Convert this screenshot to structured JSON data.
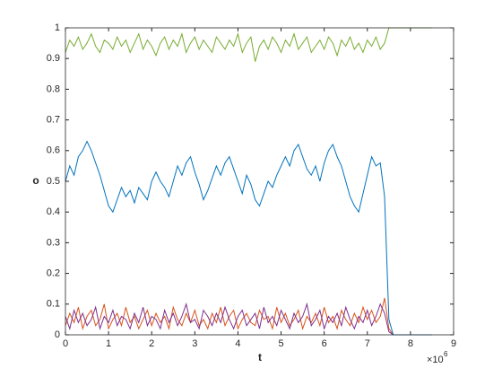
{
  "chart_data": {
    "type": "line",
    "xlabel": "t",
    "ylabel": "o",
    "x_multiplier": "×10",
    "x_multiplier_exponent": "6",
    "x": [
      0,
      0.1,
      0.2,
      0.3,
      0.4,
      0.5,
      0.6,
      0.7,
      0.8,
      0.9,
      1,
      1.1,
      1.2,
      1.3,
      1.4,
      1.5,
      1.6,
      1.7,
      1.8,
      1.9,
      2,
      2.1,
      2.2,
      2.3,
      2.4,
      2.5,
      2.6,
      2.7,
      2.8,
      2.9,
      3,
      3.1,
      3.2,
      3.3,
      3.4,
      3.5,
      3.6,
      3.7,
      3.8,
      3.9,
      4,
      4.1,
      4.2,
      4.3,
      4.4,
      4.5,
      4.6,
      4.7,
      4.8,
      4.9,
      5,
      5.1,
      5.2,
      5.3,
      5.4,
      5.5,
      5.6,
      5.7,
      5.8,
      5.9,
      6,
      6.1,
      6.2,
      6.3,
      6.4,
      6.5,
      6.6,
      6.7,
      6.8,
      6.9,
      7,
      7.1,
      7.2,
      7.3,
      7.4,
      7.5,
      7.6,
      8,
      8.5
    ],
    "series": [
      {
        "color": "#d95319",
        "values": [
          0.03,
          0.07,
          0.04,
          0.09,
          0.02,
          0.06,
          0.08,
          0.03,
          0.05,
          0.1,
          0.02,
          0.05,
          0.07,
          0.03,
          0.09,
          0.04,
          0.06,
          0.02,
          0.05,
          0.08,
          0.03,
          0.07,
          0.04,
          0.06,
          0.02,
          0.09,
          0.05,
          0.03,
          0.07,
          0.04,
          0.08,
          0.03,
          0.05,
          0.02,
          0.07,
          0.04,
          0.09,
          0.03,
          0.06,
          0.08,
          0.02,
          0.05,
          0.07,
          0.04,
          0.03,
          0.08,
          0.05,
          0.06,
          0.02,
          0.09,
          0.04,
          0.07,
          0.03,
          0.05,
          0.08,
          0.02,
          0.06,
          0.04,
          0.07,
          0.03,
          0.09,
          0.04,
          0.06,
          0.02,
          0.08,
          0.05,
          0.03,
          0.07,
          0.04,
          0.09,
          0.05,
          0.08,
          0.04,
          0.06,
          0.12,
          0.02,
          0,
          0,
          0
        ]
      },
      {
        "color": "#7e2f8e",
        "values": [
          0.06,
          0.02,
          0.08,
          0.04,
          0.07,
          0.03,
          0.05,
          0.09,
          0.02,
          0.06,
          0.04,
          0.08,
          0.03,
          0.06,
          0.05,
          0.02,
          0.07,
          0.04,
          0.09,
          0.03,
          0.06,
          0.05,
          0.02,
          0.08,
          0.04,
          0.07,
          0.03,
          0.06,
          0.1,
          0.04,
          0.05,
          0.02,
          0.08,
          0.06,
          0.03,
          0.07,
          0.04,
          0.09,
          0.05,
          0.02,
          0.06,
          0.08,
          0.03,
          0.05,
          0.07,
          0.02,
          0.09,
          0.04,
          0.06,
          0.03,
          0.08,
          0.05,
          0.02,
          0.07,
          0.04,
          0.06,
          0.1,
          0.03,
          0.05,
          0.08,
          0.02,
          0.06,
          0.04,
          0.07,
          0.03,
          0.09,
          0.05,
          0.02,
          0.06,
          0.04,
          0.08,
          0.03,
          0.06,
          0.1,
          0.07,
          0.01,
          0,
          0,
          0
        ]
      },
      {
        "color": "#0072bd",
        "values": [
          0.5,
          0.55,
          0.52,
          0.58,
          0.6,
          0.63,
          0.6,
          0.56,
          0.52,
          0.47,
          0.42,
          0.4,
          0.44,
          0.48,
          0.45,
          0.47,
          0.43,
          0.48,
          0.46,
          0.44,
          0.5,
          0.53,
          0.5,
          0.48,
          0.45,
          0.5,
          0.55,
          0.52,
          0.56,
          0.58,
          0.53,
          0.49,
          0.44,
          0.47,
          0.51,
          0.55,
          0.52,
          0.56,
          0.58,
          0.54,
          0.5,
          0.46,
          0.52,
          0.49,
          0.44,
          0.42,
          0.46,
          0.5,
          0.48,
          0.52,
          0.55,
          0.58,
          0.55,
          0.6,
          0.62,
          0.58,
          0.54,
          0.52,
          0.55,
          0.5,
          0.56,
          0.6,
          0.62,
          0.58,
          0.55,
          0.5,
          0.45,
          0.42,
          0.4,
          0.46,
          0.52,
          0.58,
          0.55,
          0.56,
          0.45,
          0.05,
          0,
          0,
          0
        ]
      },
      {
        "color": "#77ac30",
        "values": [
          0.92,
          0.96,
          0.94,
          0.97,
          0.93,
          0.95,
          0.98,
          0.94,
          0.92,
          0.96,
          0.95,
          0.93,
          0.97,
          0.94,
          0.96,
          0.92,
          0.95,
          0.98,
          0.93,
          0.96,
          0.94,
          0.91,
          0.95,
          0.97,
          0.93,
          0.96,
          0.94,
          0.98,
          0.92,
          0.95,
          0.97,
          0.93,
          0.96,
          0.94,
          0.92,
          0.97,
          0.95,
          0.93,
          0.96,
          0.94,
          0.98,
          0.92,
          0.95,
          0.97,
          0.89,
          0.94,
          0.96,
          0.93,
          0.97,
          0.95,
          0.92,
          0.96,
          0.94,
          0.98,
          0.93,
          0.95,
          0.97,
          0.92,
          0.94,
          0.96,
          0.93,
          0.97,
          0.95,
          0.91,
          0.96,
          0.94,
          0.97,
          0.93,
          0.95,
          0.92,
          0.96,
          0.94,
          0.97,
          0.93,
          0.95,
          1,
          1,
          1,
          1
        ]
      }
    ],
    "xlim": [
      0,
      9
    ],
    "xticks": [
      0,
      1,
      2,
      3,
      4,
      5,
      6,
      7,
      8,
      9
    ],
    "ylim": [
      0,
      1
    ],
    "yticks": [
      0,
      0.1,
      0.2,
      0.3,
      0.4,
      0.5,
      0.6,
      0.7,
      0.8,
      0.9,
      1
    ],
    "grid": false
  }
}
